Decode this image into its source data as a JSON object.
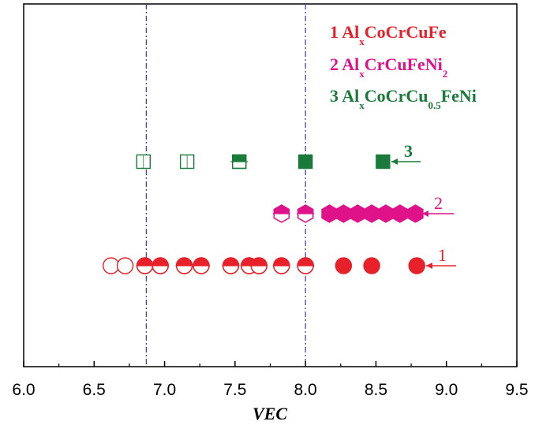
{
  "chart_data": {
    "type": "scatter",
    "xlabel": "VEC",
    "ylabel": "",
    "xlim": [
      6.0,
      9.5
    ],
    "xticks": [
      "6.0",
      "6.5",
      "7.0",
      "7.5",
      "8.0",
      "8.5",
      "9.0",
      "9.5"
    ],
    "grid": false,
    "reference_lines": [
      6.87,
      8.0
    ],
    "legend_placement": "top-right",
    "series": [
      {
        "name": "Al_x CoCrCuFe",
        "legend_number": "1",
        "legend_main": "Al",
        "legend_sub": "x",
        "legend_rest": "CoCrCuFe",
        "label": "1",
        "color": "#e8202a",
        "marker": "circle",
        "y_level": 1,
        "points": [
          {
            "x": 6.62,
            "fill": "open"
          },
          {
            "x": 6.72,
            "fill": "open"
          },
          {
            "x": 6.86,
            "fill": "top"
          },
          {
            "x": 6.97,
            "fill": "top"
          },
          {
            "x": 7.14,
            "fill": "top"
          },
          {
            "x": 7.26,
            "fill": "top"
          },
          {
            "x": 7.47,
            "fill": "top"
          },
          {
            "x": 7.6,
            "fill": "top"
          },
          {
            "x": 7.67,
            "fill": "top"
          },
          {
            "x": 7.83,
            "fill": "top"
          },
          {
            "x": 8.0,
            "fill": "top"
          },
          {
            "x": 8.27,
            "fill": "full"
          },
          {
            "x": 8.47,
            "fill": "full"
          },
          {
            "x": 8.79,
            "fill": "full"
          }
        ]
      },
      {
        "name": "Al_x CrCuFeNi_2",
        "legend_number": "2",
        "legend_main": "Al",
        "legend_sub": "x",
        "legend_rest": "CrCuFeNi",
        "legend_sub2": "2",
        "label": "2",
        "color": "#e0128a",
        "marker": "hexagon",
        "y_level": 2,
        "points": [
          {
            "x": 7.83,
            "fill": "top"
          },
          {
            "x": 8.0,
            "fill": "top"
          },
          {
            "x": 8.17,
            "fill": "full"
          },
          {
            "x": 8.27,
            "fill": "full"
          },
          {
            "x": 8.37,
            "fill": "full"
          },
          {
            "x": 8.47,
            "fill": "full"
          },
          {
            "x": 8.57,
            "fill": "full"
          },
          {
            "x": 8.67,
            "fill": "full"
          },
          {
            "x": 8.78,
            "fill": "full"
          }
        ]
      },
      {
        "name": "Al_x CoCrCu_0.5 FeNi",
        "legend_number": "3",
        "legend_main": "Al",
        "legend_sub": "x",
        "legend_rest": "CoCrCu",
        "legend_sub2": "0.5",
        "legend_rest2": "FeNi",
        "label": "3",
        "color": "#1a7a3a",
        "marker": "square",
        "y_level": 3,
        "points": [
          {
            "x": 6.85,
            "fill": "open"
          },
          {
            "x": 7.16,
            "fill": "open"
          },
          {
            "x": 7.53,
            "fill": "top"
          },
          {
            "x": 8.0,
            "fill": "full"
          },
          {
            "x": 8.55,
            "fill": "full"
          }
        ]
      }
    ]
  }
}
